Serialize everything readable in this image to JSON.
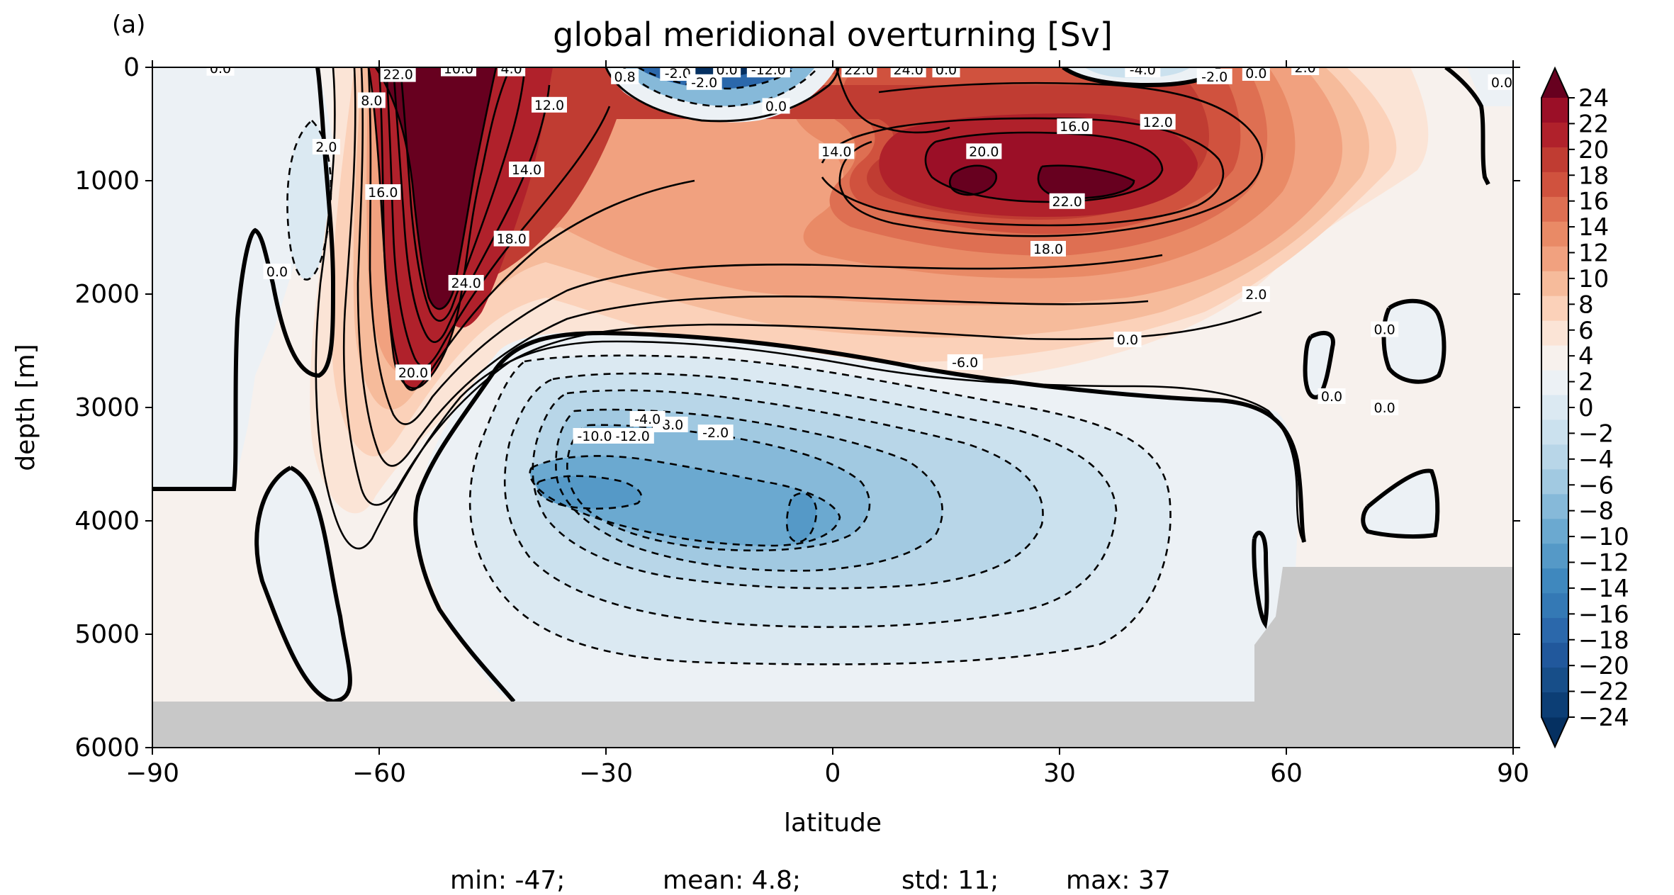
{
  "panel_label": "(a)",
  "stats": {
    "min": "min: -47;",
    "mean": "mean: 4.8;",
    "std": "std: 11;",
    "max": "max: 37"
  },
  "colors": {
    "land": "#c8c8c8",
    "zero_pos": "#f7f1ed",
    "zero_neg": "#ecf1f5",
    "levels": [
      "#053061",
      "#0c3e75",
      "#174e89",
      "#21589c",
      "#2b68ab",
      "#3479b5",
      "#3f88be",
      "#5599c7",
      "#6ba9d0",
      "#86b9d9",
      "#a1c9e1",
      "#b8d6e8",
      "#cbe1ee",
      "#dbe9f2",
      "#ecf1f5",
      "#f7f1ed",
      "#fbe4d6",
      "#fbd1b9",
      "#f6bb9b",
      "#f1a17f",
      "#e98a66",
      "#de6f52",
      "#d0523e",
      "#c03c32",
      "#b0212b",
      "#9b0f27",
      "#67001f"
    ]
  },
  "chart_data": {
    "type": "contour",
    "title": "global meridional overturning [Sv]",
    "xlabel": "latitude",
    "ylabel": "depth [m]",
    "xlim": [
      -90,
      90
    ],
    "ylim": [
      6000,
      0
    ],
    "xticks": [
      "−90",
      "−60",
      "−30",
      "0",
      "30",
      "60",
      "90"
    ],
    "yticks": [
      "0",
      "1000",
      "2000",
      "3000",
      "4000",
      "5000",
      "6000"
    ],
    "colorbar": {
      "ticks": [
        "24",
        "22",
        "20",
        "18",
        "16",
        "14",
        "12",
        "10",
        "8",
        "6",
        "4",
        "2",
        "0",
        "−2",
        "−4",
        "−6",
        "−8",
        "−10",
        "−12",
        "−14",
        "−16",
        "−18",
        "−20",
        "−22",
        "−24"
      ],
      "extend": "both"
    },
    "contour_labels": [
      {
        "text": "0.0",
        "lat": -81,
        "depth": 5
      },
      {
        "text": "22.0",
        "lat": -57.5,
        "depth": 60
      },
      {
        "text": "10.0",
        "lat": -49.5,
        "depth": 10
      },
      {
        "text": "4.0",
        "lat": -42.5,
        "depth": 10
      },
      {
        "text": "8.0",
        "lat": -61,
        "depth": 290
      },
      {
        "text": "2.0",
        "lat": -67,
        "depth": 700
      },
      {
        "text": "16.0",
        "lat": -59.5,
        "depth": 1100
      },
      {
        "text": "12.0",
        "lat": -37.5,
        "depth": 330
      },
      {
        "text": "14.0",
        "lat": -40.5,
        "depth": 900
      },
      {
        "text": "18.0",
        "lat": -42.5,
        "depth": 1510
      },
      {
        "text": "24.0",
        "lat": -48.5,
        "depth": 1900
      },
      {
        "text": "20.0",
        "lat": -55.5,
        "depth": 2690
      },
      {
        "text": "-2.0",
        "lat": -20.5,
        "depth": 50
      },
      {
        "text": "-2.0",
        "lat": -17,
        "depth": 130
      },
      {
        "text": "0.0",
        "lat": -14,
        "depth": 20
      },
      {
        "text": "-12.0",
        "lat": -8.5,
        "depth": 20
      },
      {
        "text": "0.8",
        "lat": -27.5,
        "depth": 80
      },
      {
        "text": "0.0",
        "lat": -7.5,
        "depth": 340
      },
      {
        "text": "22.0",
        "lat": 3.5,
        "depth": 20
      },
      {
        "text": "24.0",
        "lat": 10,
        "depth": 20
      },
      {
        "text": "0.0",
        "lat": 15,
        "depth": 20
      },
      {
        "text": "14.0",
        "lat": 0.5,
        "depth": 740
      },
      {
        "text": "20.0",
        "lat": 20,
        "depth": 740
      },
      {
        "text": "16.0",
        "lat": 32,
        "depth": 520
      },
      {
        "text": "12.0",
        "lat": 43,
        "depth": 480
      },
      {
        "text": "22.0",
        "lat": 31,
        "depth": 1180
      },
      {
        "text": "18.0",
        "lat": 28.5,
        "depth": 1600
      },
      {
        "text": "-4.0",
        "lat": 41,
        "depth": 20
      },
      {
        "text": "-2.0",
        "lat": 50.5,
        "depth": 80
      },
      {
        "text": "0.0",
        "lat": 56,
        "depth": 50
      },
      {
        "text": "2.0",
        "lat": 62.5,
        "depth": 0
      },
      {
        "text": "0.0",
        "lat": 88.5,
        "depth": 130
      },
      {
        "text": "0.0",
        "lat": 66,
        "depth": 2900
      },
      {
        "text": "0.0",
        "lat": 73,
        "depth": 2310
      },
      {
        "text": "-2.0",
        "lat": -15.5,
        "depth": 3220
      },
      {
        "text": "-8.0",
        "lat": -21.5,
        "depth": 3150
      },
      {
        "text": "-12.0",
        "lat": -26.5,
        "depth": 3250
      },
      {
        "text": "-6.0",
        "lat": 17.5,
        "depth": 2600
      },
      {
        "text": "-10.0",
        "lat": -31.5,
        "depth": 3250
      },
      {
        "text": "-4.0",
        "lat": -24.5,
        "depth": 3100
      },
      {
        "text": "0.0",
        "lat": 39,
        "depth": 2400
      },
      {
        "text": "0.0",
        "lat": 73,
        "depth": 3000
      },
      {
        "text": "0.0",
        "lat": -73.5,
        "depth": 1800
      },
      {
        "text": "2.0",
        "lat": 56,
        "depth": 2000
      }
    ],
    "label_positions_note_removed": true
  }
}
